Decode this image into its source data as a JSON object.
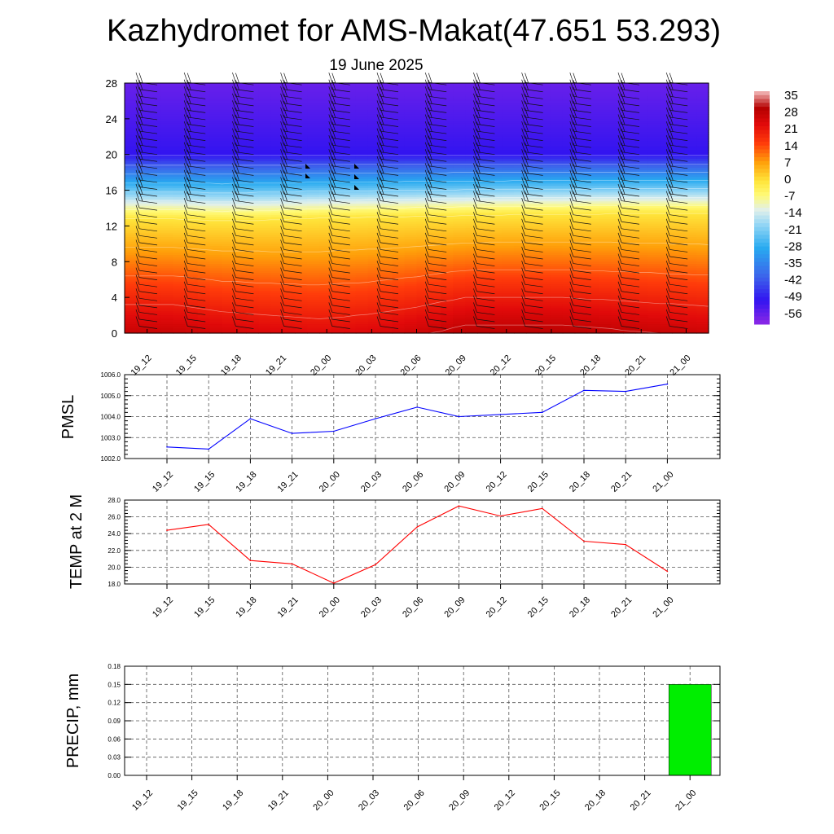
{
  "title": "Kazhydromet for AMS-Makat(47.651 53.293)",
  "subtitle": "19 June 2025",
  "time_labels": [
    "19_12",
    "19_15",
    "19_18",
    "19_21",
    "20_00",
    "20_03",
    "20_06",
    "20_09",
    "20_12",
    "20_15",
    "20_18",
    "20_21",
    "21_00"
  ],
  "chart_data": [
    {
      "type": "heatmap",
      "name": "temperature-cross-section",
      "ylim": [
        0,
        28
      ],
      "yticks": [
        0,
        4,
        8,
        12,
        16,
        20,
        24,
        28
      ],
      "x": [
        "19_12",
        "19_15",
        "19_18",
        "19_21",
        "20_00",
        "20_03",
        "20_06",
        "20_09",
        "20_12",
        "20_15",
        "20_18",
        "20_21",
        "21_00"
      ],
      "zero_isotherm_height": [
        12.8,
        12.8,
        12.6,
        12.7,
        12.9,
        13.0,
        13.1,
        13.2,
        13.3,
        13.3,
        13.4,
        13.4,
        13.4
      ],
      "surface_temp": [
        28,
        28,
        26,
        25,
        24,
        25,
        27,
        30,
        30,
        30,
        29,
        28,
        27
      ],
      "top_temp": -56,
      "colorbar_labels": [
        "35",
        "28",
        "21",
        "14",
        "7",
        "0",
        "-7",
        "-14",
        "-21",
        "-28",
        "-35",
        "-42",
        "-49",
        "-56"
      ],
      "colorbar_range": [
        -60,
        38
      ],
      "wind_barbs": "yes"
    },
    {
      "type": "line",
      "name": "pmsl",
      "ylabel": "PMSL",
      "categories": [
        "19_12",
        "19_15",
        "19_18",
        "19_21",
        "20_00",
        "20_03",
        "20_06",
        "20_09",
        "20_12",
        "20_15",
        "20_18",
        "20_21",
        "21_00"
      ],
      "values": [
        1002.55,
        1002.45,
        1003.9,
        1003.2,
        1003.3,
        1003.9,
        1004.45,
        1004.0,
        1004.1,
        1004.2,
        1005.25,
        1005.2,
        1005.55
      ],
      "ylim": [
        1002.0,
        1006.0
      ],
      "yticks": [
        "1002.0",
        "1003.0",
        "1004.0",
        "1005.0",
        "1006.0"
      ],
      "color": "#0000ff",
      "grid": true
    },
    {
      "type": "line",
      "name": "temp-2m",
      "ylabel": "TEMP at 2 M",
      "categories": [
        "19_12",
        "19_15",
        "19_18",
        "19_21",
        "20_00",
        "20_03",
        "20_06",
        "20_09",
        "20_12",
        "20_15",
        "20_18",
        "20_21",
        "21_00"
      ],
      "values": [
        24.4,
        25.1,
        20.8,
        20.4,
        18.1,
        20.3,
        24.8,
        27.3,
        26.1,
        27.0,
        23.1,
        22.7,
        19.5
      ],
      "ylim": [
        18.0,
        28.0
      ],
      "yticks": [
        "18.0",
        "20.0",
        "22.0",
        "24.0",
        "26.0",
        "28.0"
      ],
      "color": "#ff0000",
      "grid": true
    },
    {
      "type": "bar",
      "name": "precip",
      "ylabel": "PRECIP, mm",
      "categories": [
        "19_12",
        "19_15",
        "19_18",
        "19_21",
        "20_00",
        "20_03",
        "20_06",
        "20_09",
        "20_12",
        "20_15",
        "20_18",
        "20_21",
        "21_00"
      ],
      "values": [
        0,
        0,
        0,
        0,
        0,
        0,
        0,
        0,
        0,
        0,
        0,
        0,
        0.15
      ],
      "ylim": [
        0,
        0.18
      ],
      "yticks": [
        "0.00",
        "0.03",
        "0.06",
        "0.09",
        "0.12",
        "0.15",
        "0.18"
      ],
      "color": "#00ee00",
      "grid": true
    }
  ]
}
